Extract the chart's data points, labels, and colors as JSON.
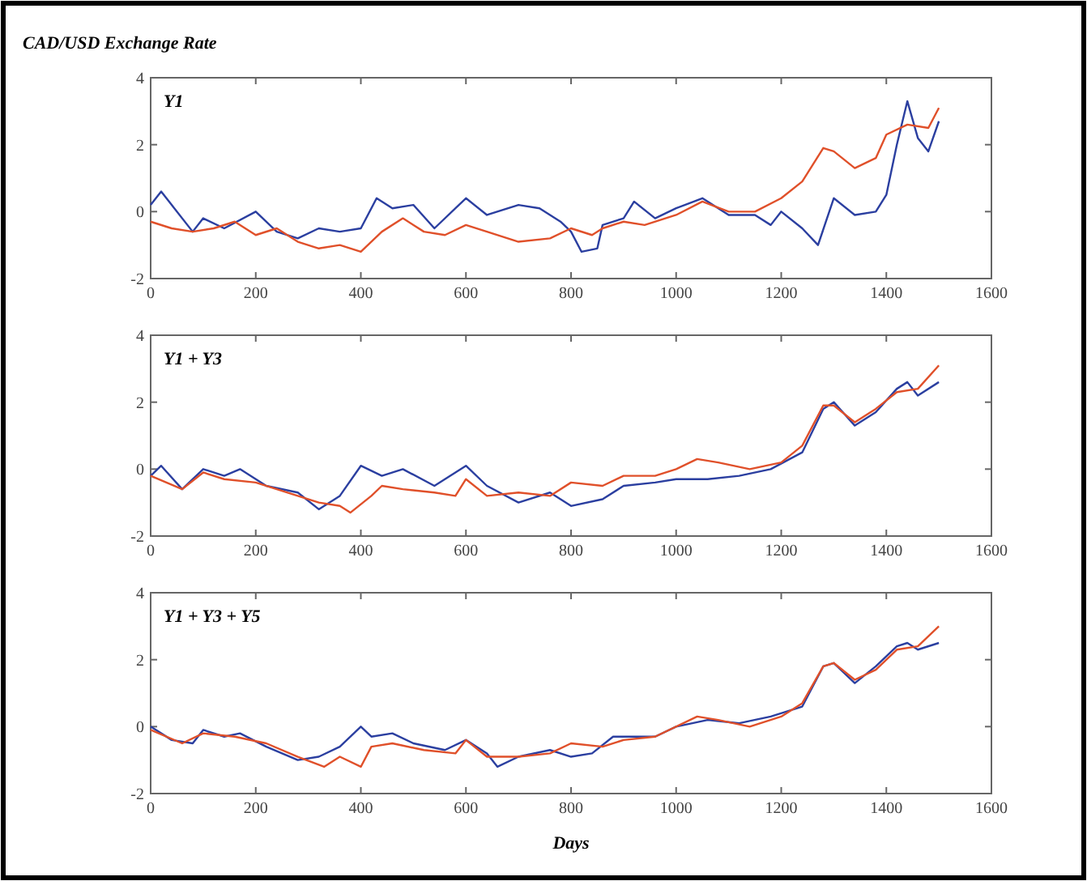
{
  "chart_data": [
    {
      "type": "line",
      "title": "CAD/USD Exchange Rate",
      "annotations": [
        "Y1"
      ],
      "xlim": [
        0,
        1600
      ],
      "xticks": [
        0,
        200,
        400,
        600,
        800,
        1000,
        1200,
        1400,
        1600
      ],
      "ylim": [
        -2,
        4
      ],
      "yticks": [
        -2,
        0,
        2,
        4
      ],
      "grid": false,
      "series": [
        {
          "color": "#2b3fa0",
          "x": [
            0,
            20,
            40,
            80,
            100,
            140,
            200,
            240,
            280,
            320,
            360,
            400,
            430,
            460,
            500,
            540,
            600,
            640,
            700,
            740,
            780,
            800,
            820,
            850,
            860,
            900,
            920,
            960,
            1000,
            1050,
            1100,
            1150,
            1180,
            1200,
            1240,
            1270,
            1300,
            1340,
            1380,
            1400,
            1420,
            1440,
            1460,
            1480,
            1500
          ],
          "values": [
            0.2,
            0.6,
            0.2,
            -0.6,
            -0.2,
            -0.5,
            0,
            -0.6,
            -0.8,
            -0.5,
            -0.6,
            -0.5,
            0.4,
            0.1,
            0.2,
            -0.5,
            0.4,
            -0.1,
            0.2,
            0.1,
            -0.3,
            -0.6,
            -1.2,
            -1.1,
            -0.4,
            -0.2,
            0.3,
            -0.2,
            0.1,
            0.4,
            -0.1,
            -0.1,
            -0.4,
            0,
            -0.5,
            -1.0,
            0.4,
            -0.1,
            0.0,
            0.5,
            2.0,
            3.3,
            2.2,
            1.8,
            2.7
          ]
        },
        {
          "color": "#e0502a",
          "x": [
            0,
            40,
            80,
            120,
            160,
            200,
            240,
            280,
            320,
            360,
            400,
            440,
            480,
            520,
            560,
            600,
            640,
            700,
            760,
            800,
            840,
            860,
            900,
            940,
            1000,
            1050,
            1100,
            1150,
            1200,
            1240,
            1280,
            1300,
            1340,
            1380,
            1400,
            1440,
            1480,
            1500
          ],
          "values": [
            -0.3,
            -0.5,
            -0.6,
            -0.5,
            -0.3,
            -0.7,
            -0.5,
            -0.9,
            -1.1,
            -1.0,
            -1.2,
            -0.6,
            -0.2,
            -0.6,
            -0.7,
            -0.4,
            -0.6,
            -0.9,
            -0.8,
            -0.5,
            -0.7,
            -0.5,
            -0.3,
            -0.4,
            -0.1,
            0.3,
            0.0,
            0.0,
            0.4,
            0.9,
            1.9,
            1.8,
            1.3,
            1.6,
            2.3,
            2.6,
            2.5,
            3.1
          ]
        }
      ]
    },
    {
      "type": "line",
      "annotations": [
        "Y1 + Y3"
      ],
      "xlim": [
        0,
        1600
      ],
      "xticks": [
        0,
        200,
        400,
        600,
        800,
        1000,
        1200,
        1400,
        1600
      ],
      "ylim": [
        -2,
        4
      ],
      "yticks": [
        -2,
        0,
        2,
        4
      ],
      "grid": false,
      "series": [
        {
          "color": "#2b3fa0",
          "x": [
            0,
            20,
            60,
            100,
            140,
            170,
            220,
            280,
            320,
            360,
            400,
            440,
            480,
            540,
            600,
            640,
            700,
            760,
            800,
            860,
            900,
            960,
            1000,
            1060,
            1120,
            1180,
            1240,
            1280,
            1300,
            1340,
            1380,
            1420,
            1440,
            1460,
            1500
          ],
          "values": [
            -0.2,
            0.1,
            -0.6,
            0.0,
            -0.2,
            0.0,
            -0.5,
            -0.7,
            -1.2,
            -0.8,
            0.1,
            -0.2,
            0.0,
            -0.5,
            0.1,
            -0.5,
            -1.0,
            -0.7,
            -1.1,
            -0.9,
            -0.5,
            -0.4,
            -0.3,
            -0.3,
            -0.2,
            0.0,
            0.5,
            1.8,
            2.0,
            1.3,
            1.7,
            2.4,
            2.6,
            2.2,
            2.6
          ]
        },
        {
          "color": "#e0502a",
          "x": [
            0,
            60,
            100,
            140,
            200,
            280,
            320,
            360,
            380,
            420,
            440,
            480,
            540,
            580,
            600,
            640,
            700,
            760,
            800,
            860,
            900,
            960,
            1000,
            1040,
            1080,
            1140,
            1200,
            1240,
            1280,
            1300,
            1340,
            1380,
            1420,
            1460,
            1500
          ],
          "values": [
            -0.2,
            -0.6,
            -0.1,
            -0.3,
            -0.4,
            -0.8,
            -1.0,
            -1.1,
            -1.3,
            -0.8,
            -0.5,
            -0.6,
            -0.7,
            -0.8,
            -0.3,
            -0.8,
            -0.7,
            -0.8,
            -0.4,
            -0.5,
            -0.2,
            -0.2,
            0.0,
            0.3,
            0.2,
            0.0,
            0.2,
            0.7,
            1.9,
            1.9,
            1.4,
            1.8,
            2.3,
            2.4,
            3.1
          ]
        }
      ]
    },
    {
      "type": "line",
      "xlabel": "Days",
      "annotations": [
        "Y1 + Y3 + Y5"
      ],
      "xlim": [
        0,
        1600
      ],
      "xticks": [
        0,
        200,
        400,
        600,
        800,
        1000,
        1200,
        1400,
        1600
      ],
      "ylim": [
        -2,
        4
      ],
      "yticks": [
        -2,
        0,
        2,
        4
      ],
      "grid": false,
      "series": [
        {
          "color": "#2b3fa0",
          "x": [
            0,
            40,
            80,
            100,
            140,
            170,
            220,
            280,
            320,
            360,
            400,
            420,
            460,
            500,
            560,
            600,
            640,
            660,
            700,
            760,
            800,
            840,
            880,
            920,
            960,
            1000,
            1060,
            1120,
            1180,
            1240,
            1280,
            1300,
            1340,
            1380,
            1420,
            1440,
            1460,
            1500
          ],
          "values": [
            0.0,
            -0.4,
            -0.5,
            -0.1,
            -0.3,
            -0.2,
            -0.6,
            -1.0,
            -0.9,
            -0.6,
            0.0,
            -0.3,
            -0.2,
            -0.5,
            -0.7,
            -0.4,
            -0.8,
            -1.2,
            -0.9,
            -0.7,
            -0.9,
            -0.8,
            -0.3,
            -0.3,
            -0.3,
            0.0,
            0.2,
            0.1,
            0.3,
            0.6,
            1.8,
            1.9,
            1.3,
            1.8,
            2.4,
            2.5,
            2.3,
            2.5
          ]
        },
        {
          "color": "#e0502a",
          "x": [
            0,
            60,
            100,
            160,
            220,
            280,
            330,
            360,
            400,
            420,
            460,
            520,
            580,
            600,
            640,
            700,
            760,
            800,
            860,
            900,
            960,
            1040,
            1080,
            1140,
            1200,
            1240,
            1280,
            1300,
            1340,
            1380,
            1420,
            1460,
            1500
          ],
          "values": [
            -0.1,
            -0.5,
            -0.2,
            -0.3,
            -0.5,
            -0.9,
            -1.2,
            -0.9,
            -1.2,
            -0.6,
            -0.5,
            -0.7,
            -0.8,
            -0.4,
            -0.9,
            -0.9,
            -0.8,
            -0.5,
            -0.6,
            -0.4,
            -0.3,
            0.3,
            0.2,
            0.0,
            0.3,
            0.7,
            1.8,
            1.9,
            1.4,
            1.7,
            2.3,
            2.4,
            3.0
          ]
        }
      ]
    }
  ]
}
